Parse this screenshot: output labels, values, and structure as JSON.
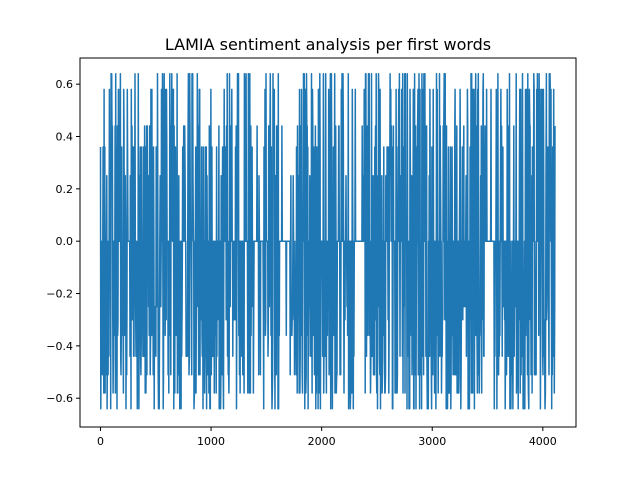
{
  "chart_data": {
    "type": "line",
    "title": "LAMIA sentiment analysis per first words",
    "xlabel": "",
    "ylabel": "",
    "xlim": [
      -185,
      4300
    ],
    "ylim": [
      -0.71,
      0.7
    ],
    "xticks": [
      0,
      1000,
      2000,
      3000,
      4000
    ],
    "xtick_labels": [
      "0",
      "1000",
      "2000",
      "3000",
      "4000"
    ],
    "yticks": [
      -0.6,
      -0.4,
      -0.2,
      0.0,
      0.2,
      0.4,
      0.6
    ],
    "ytick_labels": [
      "−0.6",
      "−0.4",
      "−0.2",
      "0.0",
      "0.2",
      "0.4",
      "0.6"
    ],
    "grid": false,
    "legend": "none",
    "series": [
      {
        "color": "#1f77b4",
        "x_range": [
          0,
          4110
        ],
        "description_note": "dense oscillating sentiment scores per word index; values cluster at 0.0, +/-0.25, +/-0.36, +/-0.44, +/-0.58, +/-0.64",
        "levels": [
          0.64,
          0.58,
          0.44,
          0.36,
          0.25,
          0.0,
          -0.25,
          -0.3,
          -0.36,
          -0.44,
          -0.51,
          -0.58,
          -0.64
        ],
        "gaps_at_zero": [
          [
            1390,
            1470
          ],
          [
            1620,
            1720
          ],
          [
            2280,
            2380
          ],
          [
            3480,
            3560
          ]
        ]
      }
    ]
  }
}
